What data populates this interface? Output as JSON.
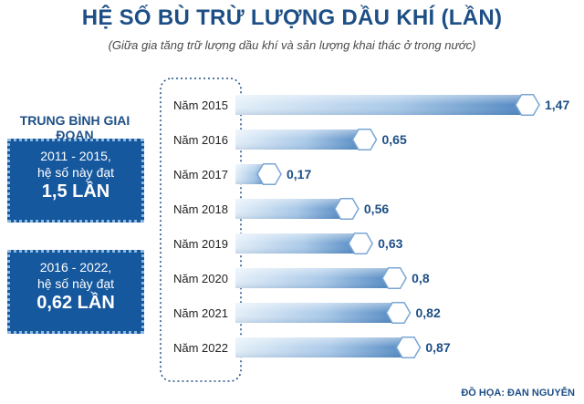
{
  "title": "HỆ SỐ BÙ TRỪ LƯỢNG DẦU KHÍ (LẦN)",
  "subtitle": "(Giữa gia tăng trữ lượng dầu khí và sản lượng khai thác ở trong nước)",
  "sidebar": {
    "heading": "TRUNG BÌNH GIAI ĐOẠN",
    "boxes": [
      {
        "period": "2011 - 2015,",
        "text": "hệ số này đạt",
        "value": "1,5 LẦN"
      },
      {
        "period": "2016 - 2022,",
        "text": "hệ số này đạt",
        "value": "0,62 LẦN"
      }
    ]
  },
  "credit": "ĐỒ HỌA: ĐAN NGUYỄN",
  "colors": {
    "title": "#1d4f86",
    "bar_light": "#dbeaf7",
    "bar_dark": "#4f86c1",
    "box_fill": "#16589e"
  },
  "chart_data": {
    "type": "bar",
    "orientation": "horizontal",
    "title": "HỆ SỐ BÙ TRỪ LƯỢNG DẦU KHÍ (LẦN)",
    "categories": [
      "Năm 2015",
      "Năm 2016",
      "Năm 2017",
      "Năm 2018",
      "Năm 2019",
      "Năm 2020",
      "Năm 2021",
      "Năm 2022"
    ],
    "values": [
      1.47,
      0.65,
      0.17,
      0.56,
      0.63,
      0.8,
      0.82,
      0.87
    ],
    "value_labels": [
      "1,47",
      "0,65",
      "0,17",
      "0,56",
      "0,63",
      "0,8",
      "0,82",
      "0,87"
    ],
    "xlabel": "",
    "ylabel": "",
    "grid": false
  }
}
